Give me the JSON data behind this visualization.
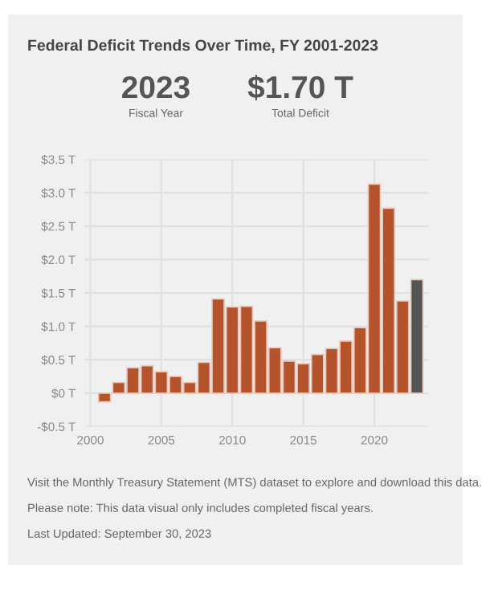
{
  "chart_data": {
    "type": "bar",
    "title": "Federal Deficit Trends Over Time, FY 2001-2023",
    "x": [
      2001,
      2002,
      2003,
      2004,
      2005,
      2006,
      2007,
      2008,
      2009,
      2010,
      2011,
      2012,
      2013,
      2014,
      2015,
      2016,
      2017,
      2018,
      2019,
      2020,
      2021,
      2022,
      2023
    ],
    "values": [
      -0.13,
      0.16,
      0.38,
      0.41,
      0.32,
      0.25,
      0.16,
      0.46,
      1.41,
      1.29,
      1.3,
      1.08,
      0.68,
      0.48,
      0.44,
      0.58,
      0.67,
      0.78,
      0.98,
      3.13,
      2.77,
      1.38,
      1.7
    ],
    "colors": [
      "#b5532c",
      "#b5532c",
      "#b5532c",
      "#b5532c",
      "#b5532c",
      "#b5532c",
      "#b5532c",
      "#b5532c",
      "#b5532c",
      "#b5532c",
      "#b5532c",
      "#b5532c",
      "#b5532c",
      "#b5532c",
      "#b5532c",
      "#b5532c",
      "#b5532c",
      "#b5532c",
      "#b5532c",
      "#b5532c",
      "#b5532c",
      "#b5532c",
      "#555555"
    ],
    "xlim": [
      1999.6,
      2023.8
    ],
    "xticks": [
      2000,
      2005,
      2010,
      2015,
      2020
    ],
    "ylim": [
      -0.5,
      3.5
    ],
    "yticks": [
      {
        "value": -0.5,
        "label": "-$0.5 T"
      },
      {
        "value": 0,
        "label": "$0 T"
      },
      {
        "value": 0.5,
        "label": "$0.5 T"
      },
      {
        "value": 1,
        "label": "$1.0 T"
      },
      {
        "value": 1.5,
        "label": "$1.5 T"
      },
      {
        "value": 2,
        "label": "$2.0 T"
      },
      {
        "value": 2.5,
        "label": "$2.5 T"
      },
      {
        "value": 3,
        "label": "$3.0 T"
      },
      {
        "value": 3.5,
        "label": "$3.5 T"
      }
    ],
    "grid": true,
    "annotations": [
      "2023",
      "Fiscal Year",
      "$1.70 T",
      "Total Deficit",
      "Visit the Monthly Treasury Statement (MTS) dataset to explore and download this data.",
      "Please note: This data visual only includes completed fiscal years.",
      "Last Updated: September 30, 2023"
    ]
  }
}
